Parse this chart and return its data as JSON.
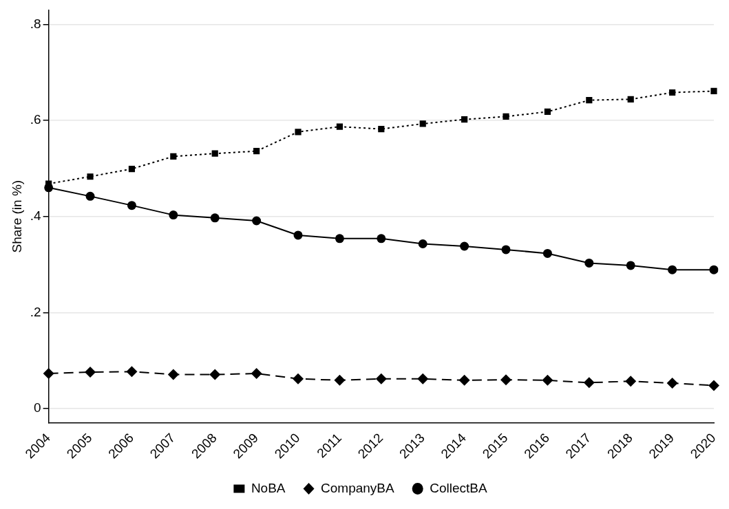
{
  "chart_data": {
    "type": "line",
    "ylabel": "Share (in %)",
    "categories": [
      "2004",
      "2005",
      "2006",
      "2007",
      "2008",
      "2009",
      "2010",
      "2011",
      "2012",
      "2013",
      "2014",
      "2015",
      "2016",
      "2017",
      "2018",
      "2019",
      "2020"
    ],
    "series": [
      {
        "name": "CollectBA",
        "color": "#000000",
        "marker": "circle",
        "line_style": "solid",
        "values": [
          0.46,
          0.442,
          0.423,
          0.403,
          0.397,
          0.391,
          0.361,
          0.354,
          0.354,
          0.343,
          0.338,
          0.331,
          0.323,
          0.303,
          0.298,
          0.289,
          0.289
        ]
      },
      {
        "name": "CompanyBA",
        "color": "#000000",
        "marker": "diamond",
        "line_style": "dashed",
        "values": [
          0.073,
          0.076,
          0.077,
          0.071,
          0.071,
          0.073,
          0.062,
          0.059,
          0.062,
          0.062,
          0.059,
          0.06,
          0.059,
          0.054,
          0.057,
          0.053,
          0.048
        ]
      },
      {
        "name": "NoBA",
        "color": "#000000",
        "marker": "square",
        "line_style": "dotted",
        "values": [
          0.468,
          0.483,
          0.499,
          0.525,
          0.531,
          0.536,
          0.576,
          0.587,
          0.582,
          0.593,
          0.602,
          0.608,
          0.618,
          0.642,
          0.644,
          0.658,
          0.661
        ]
      }
    ],
    "ylim": [
      -0.03,
      0.83
    ],
    "yticks": [
      0,
      {
        "value": 0.2,
        "label": ".2"
      },
      {
        "value": 0.4,
        "label": ".4"
      },
      {
        "value": 0.6,
        "label": ".6"
      },
      {
        "value": 0.8,
        "label": ".8"
      }
    ],
    "grid": "y",
    "legend": "bottom"
  }
}
